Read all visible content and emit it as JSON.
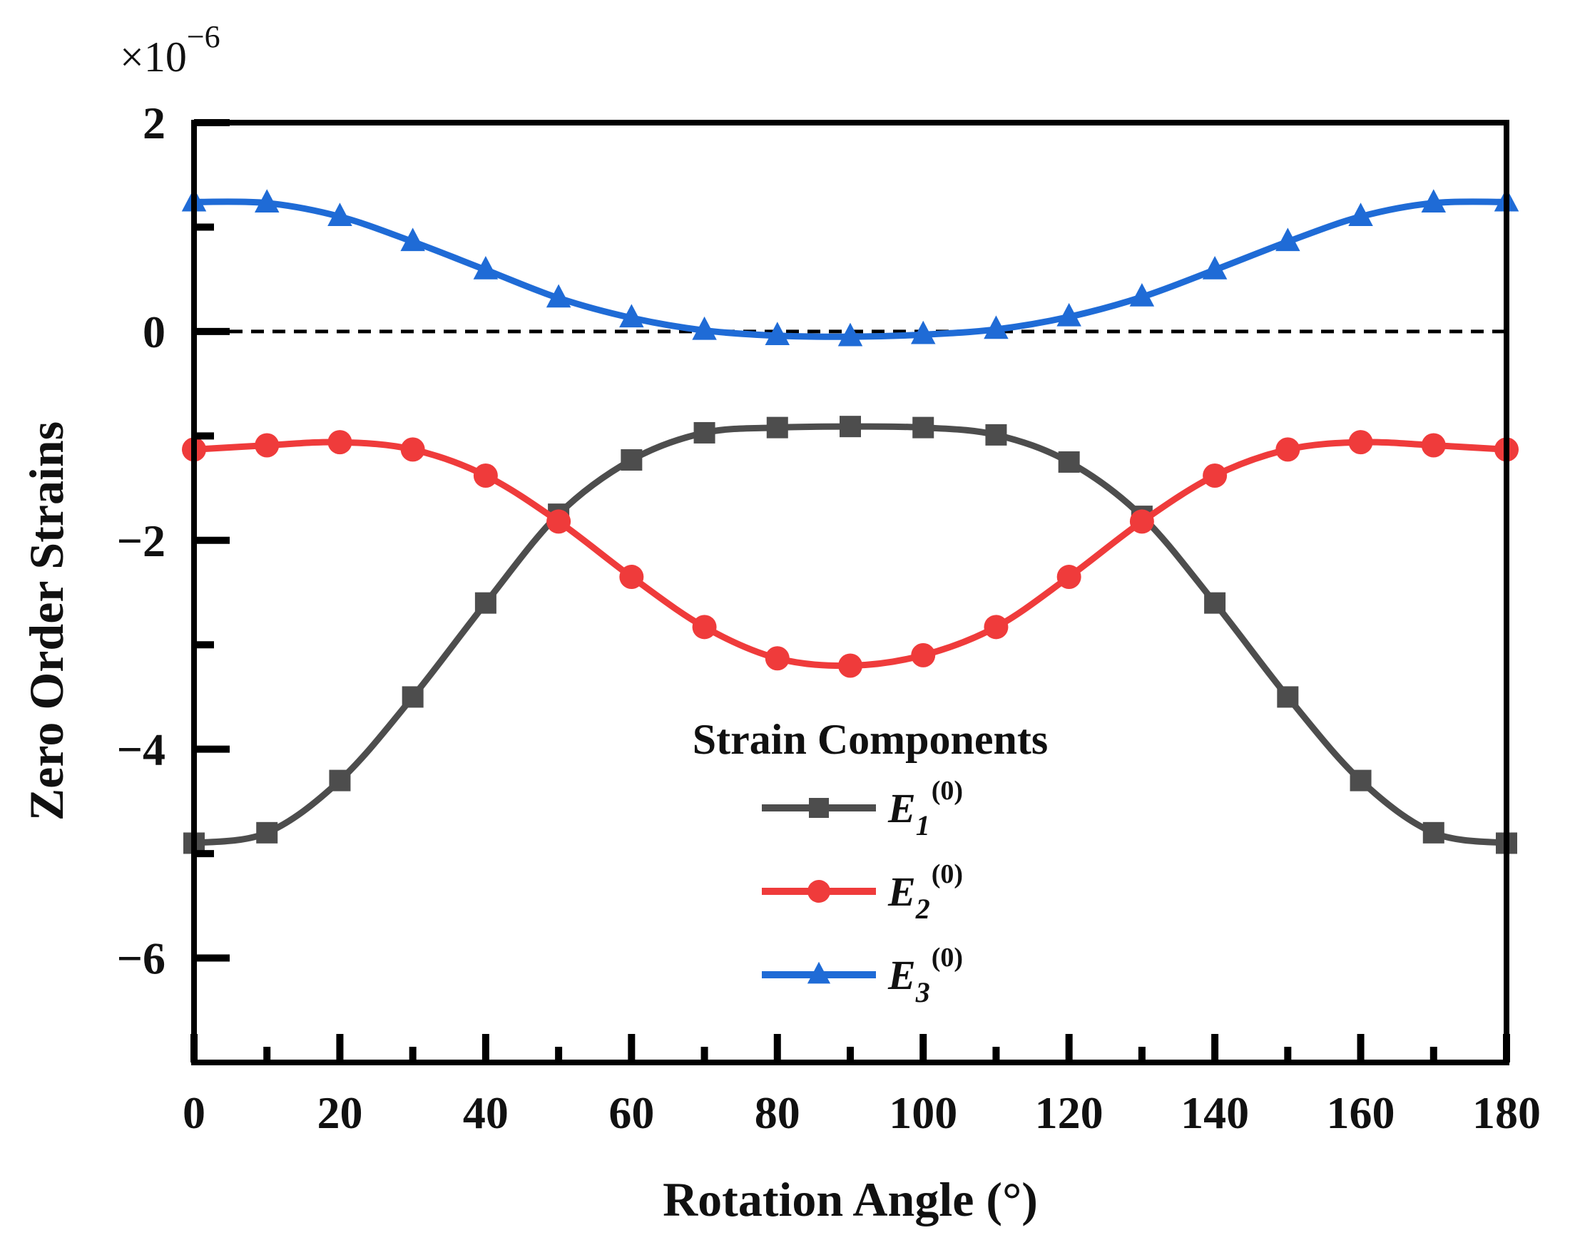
{
  "chart_data": {
    "type": "line",
    "title": "",
    "xlabel": "Rotation Angle (°)",
    "ylabel": "Zero Order Strains",
    "y_multiplier": "×10",
    "y_multiplier_exponent": "−6",
    "xlim": [
      0,
      180
    ],
    "ylim": [
      -7,
      2
    ],
    "x_ticks": [
      0,
      20,
      40,
      60,
      80,
      100,
      120,
      140,
      160,
      180
    ],
    "x_tick_labels": [
      "0",
      "20",
      "40",
      "60",
      "80",
      "100",
      "120",
      "140",
      "160",
      "180"
    ],
    "x_minor_ticks": [
      10,
      30,
      50,
      70,
      90,
      110,
      130,
      150,
      170
    ],
    "y_ticks": [
      2,
      0,
      -2,
      -4,
      -6
    ],
    "y_tick_labels": [
      "2",
      "0",
      "−2",
      "−4",
      "−6"
    ],
    "y_minor_ticks": [
      1,
      -1,
      -3,
      -5
    ],
    "reference_line": {
      "y": 0,
      "style": "dashed",
      "color": "#000000"
    },
    "legend": {
      "title": "Strain Components",
      "placement": "center-bottom"
    },
    "x": [
      0,
      10,
      20,
      30,
      40,
      50,
      60,
      70,
      80,
      90,
      100,
      110,
      120,
      130,
      140,
      150,
      160,
      170,
      180
    ],
    "series": [
      {
        "name": "E1(0)",
        "symbol": "E",
        "subscript": "1",
        "superscript": "(0)",
        "color": "#4d4d4d",
        "marker": "square",
        "values": [
          -4.9,
          -4.8,
          -4.3,
          -3.5,
          -2.6,
          -1.75,
          -1.23,
          -0.97,
          -0.92,
          -0.91,
          -0.92,
          -0.99,
          -1.25,
          -1.77,
          -2.6,
          -3.5,
          -4.3,
          -4.8,
          -4.9
        ]
      },
      {
        "name": "E2(0)",
        "symbol": "E",
        "subscript": "2",
        "superscript": "(0)",
        "color": "#ef3b3b",
        "marker": "circle",
        "values": [
          -1.13,
          -1.09,
          -1.06,
          -1.13,
          -1.38,
          -1.82,
          -2.35,
          -2.83,
          -3.13,
          -3.2,
          -3.1,
          -2.83,
          -2.35,
          -1.82,
          -1.38,
          -1.13,
          -1.06,
          -1.09,
          -1.13
        ]
      },
      {
        "name": "E3(0)",
        "symbol": "E",
        "subscript": "3",
        "superscript": "(0)",
        "color": "#1f6bd6",
        "marker": "triangle",
        "values": [
          1.24,
          1.23,
          1.1,
          0.86,
          0.59,
          0.32,
          0.13,
          0.01,
          -0.04,
          -0.05,
          -0.03,
          0.02,
          0.14,
          0.33,
          0.59,
          0.86,
          1.1,
          1.23,
          1.24
        ]
      }
    ]
  }
}
